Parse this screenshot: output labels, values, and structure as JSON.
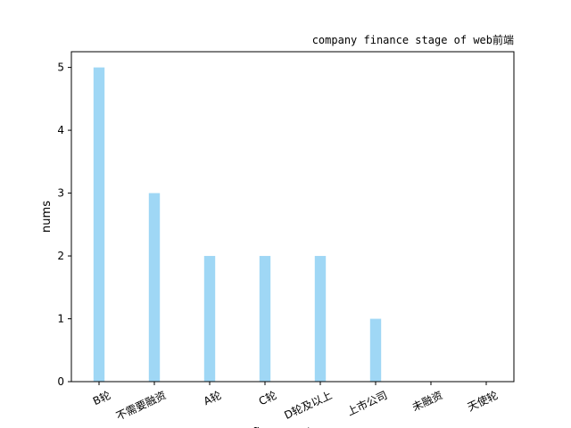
{
  "chart_data": {
    "type": "bar",
    "title": "company finance stage of web前端",
    "xlabel": "finance_stage",
    "ylabel": "nums",
    "categories": [
      "B轮",
      "不需要融资",
      "A轮",
      "C轮",
      "D轮及以上",
      "上市公司",
      "未融资",
      "天使轮"
    ],
    "values": [
      5,
      3,
      2,
      2,
      2,
      1,
      0,
      0
    ],
    "ylim": [
      0,
      5.25
    ],
    "yticks": [
      0,
      1,
      2,
      3,
      4,
      5
    ],
    "bar_color": "#9fd7f5",
    "grid": false,
    "legend": "none"
  }
}
